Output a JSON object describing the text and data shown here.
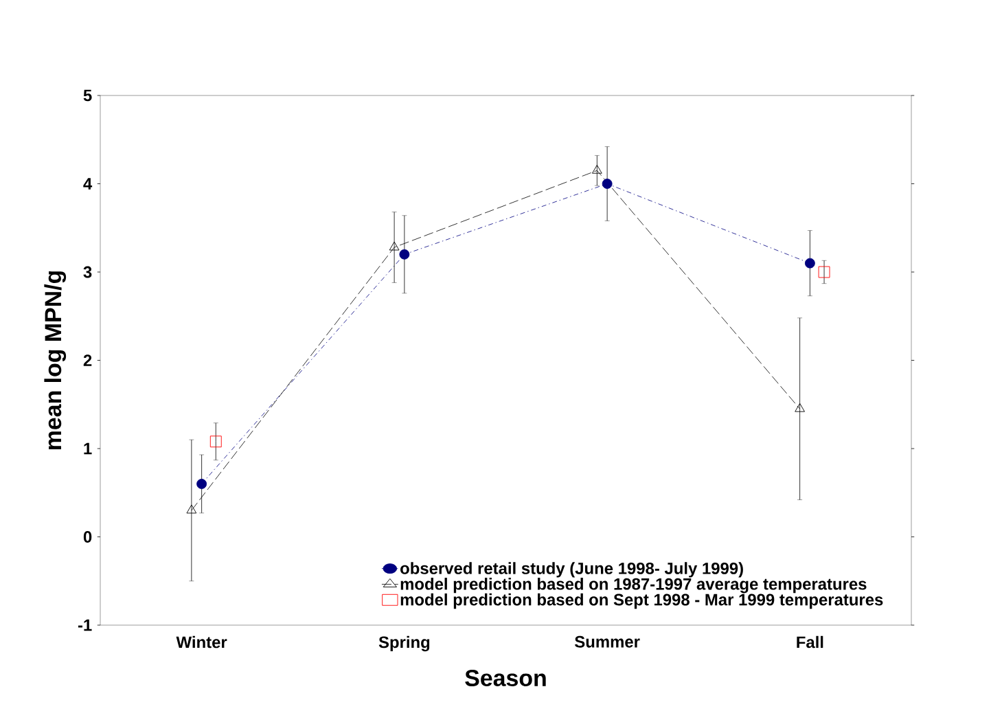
{
  "chart_data": {
    "type": "line",
    "xlabel": "Season",
    "ylabel": "mean log MPN/g",
    "categories": [
      "Winter",
      "Spring",
      "Summer",
      "Fall"
    ],
    "series": [
      {
        "name": "observed retail study (June 1998- July 1999)",
        "color": "#000080",
        "marker": "circle",
        "line_style": "dashdot",
        "values": [
          0.6,
          3.2,
          4.0,
          3.1
        ],
        "errors": [
          0.33,
          0.44,
          0.42,
          0.37
        ]
      },
      {
        "name": "model prediction based on 1987-1997 average temperatures",
        "color": "#000000",
        "marker": "triangle",
        "line_style": "dashed",
        "values": [
          0.3,
          3.28,
          4.15,
          1.45
        ],
        "errors": [
          0.8,
          0.4,
          0.17,
          1.03
        ]
      },
      {
        "name": "model prediction based on Sept 1998 - Mar 1999 temperatures",
        "type": "scatter",
        "color": "#ff0000",
        "marker": "square",
        "values": [
          1.08,
          null,
          null,
          3.0
        ],
        "errors": [
          0.21,
          null,
          null,
          0.13
        ]
      }
    ],
    "ylim": [
      -1,
      5
    ],
    "yticks": [
      -1,
      0,
      1,
      2,
      3,
      4,
      5
    ],
    "grid": false,
    "legend": "bottom right"
  }
}
